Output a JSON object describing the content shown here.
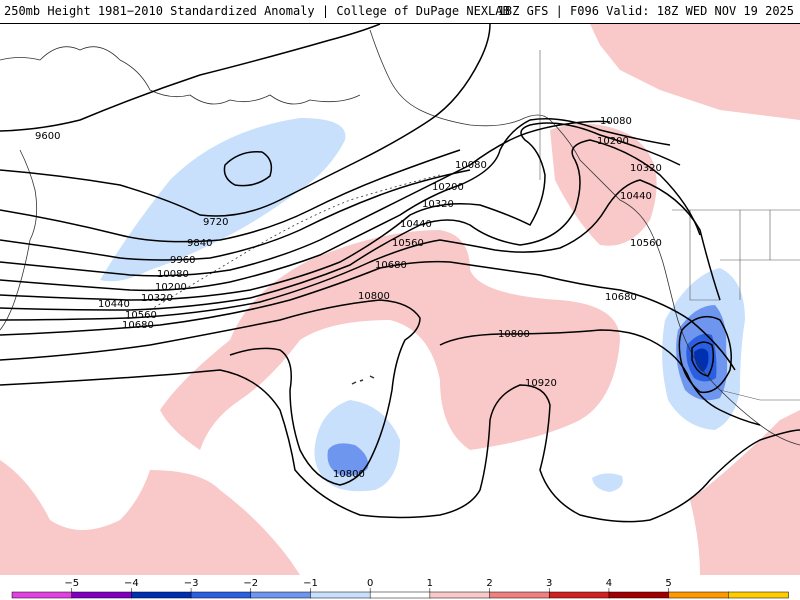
{
  "header": {
    "title_left": "250mb Height 1981−2010 Standardized Anomaly | College of DuPage NEXLAB",
    "title_right": "18Z GFS | F096 Valid: 18Z WED NOV 19 2025"
  },
  "contour_labels": {
    "c9600": "9600",
    "c9720": "9720",
    "c9840": "9840",
    "c9960": "9960",
    "c10080_w": "10080",
    "c10200_w": "10200",
    "c10320_w": "10320",
    "c10440_w": "10440",
    "c10560_w": "10560",
    "c10680_w": "10680",
    "c10080_c": "10080",
    "c10200_c": "10200",
    "c10320_c": "10320",
    "c10440_c": "10440",
    "c10560_c": "10560",
    "c10680_c": "10680",
    "c10800_c": "10800",
    "c10080_e": "10080",
    "c10200_e": "10200",
    "c10320_e": "10320",
    "c10440_e": "10440",
    "c10560_e": "10560",
    "c10680_e": "10680",
    "c10800_e": "10800",
    "c10920": "10920",
    "c10800_low": "10800"
  },
  "colorbar": {
    "ticks": [
      "−5",
      "−4",
      "−3",
      "−2",
      "−1",
      "0",
      "1",
      "2",
      "3",
      "4",
      "5"
    ],
    "colors": [
      "#e040e0",
      "#8000c0",
      "#0030b0",
      "#2a5fe0",
      "#6f96ee",
      "#c8e0fb",
      "#ffffff",
      "#f9c8c8",
      "#ef8080",
      "#d02020",
      "#a00000",
      "#ff9900",
      "#ffcc00"
    ],
    "accent_positive": "#f9c8c8",
    "accent_negative": "#c8e0fb"
  }
}
